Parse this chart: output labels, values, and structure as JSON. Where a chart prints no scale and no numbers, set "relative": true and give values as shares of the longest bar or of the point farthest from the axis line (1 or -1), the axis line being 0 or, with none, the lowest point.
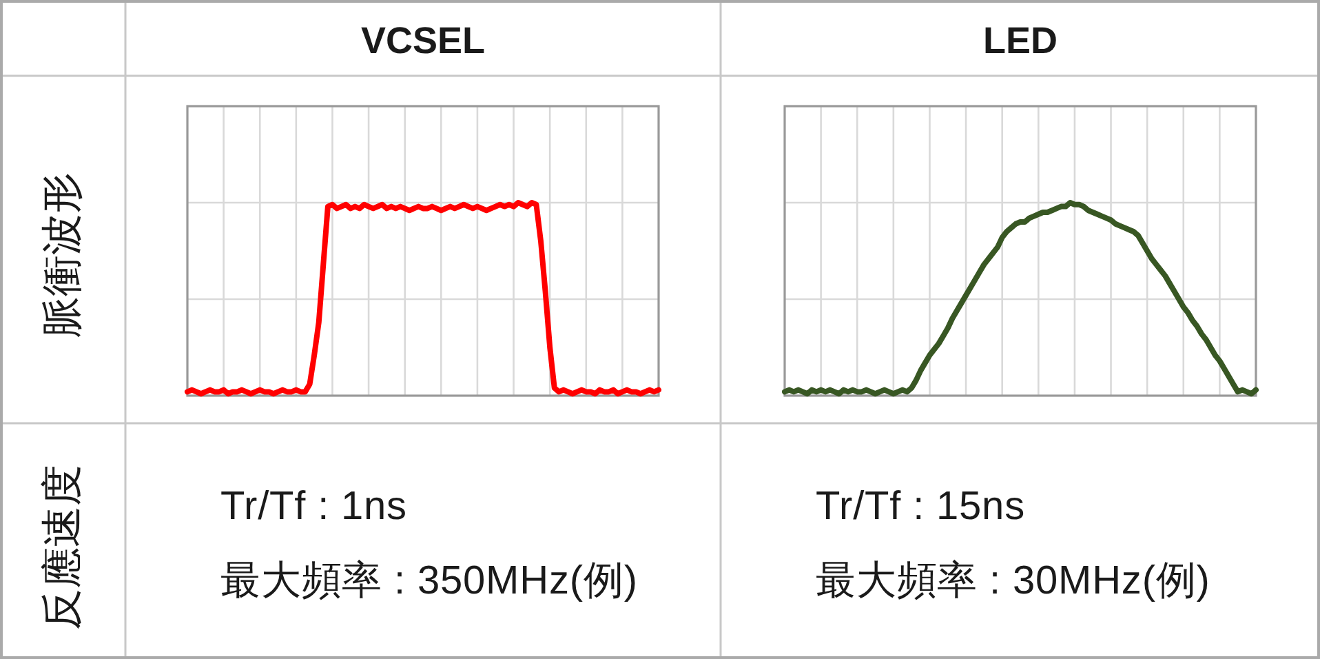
{
  "chart_data": [
    {
      "type": "other",
      "annotations": [
        "脈衝波形",
        "反應速度"
      ]
    },
    {
      "type": "line",
      "title": "VCSEL",
      "relative": true,
      "grid": true,
      "categories": [
        null,
        null,
        null,
        null,
        null,
        null,
        null,
        null,
        null,
        null,
        null,
        null,
        null,
        null,
        null,
        null,
        null,
        null,
        null,
        null,
        null,
        null,
        null,
        null,
        null,
        null,
        null,
        null,
        null,
        null,
        null,
        null,
        null,
        null,
        null,
        null,
        null,
        null,
        null,
        null,
        null,
        null,
        null,
        null,
        null,
        null,
        null,
        null,
        null,
        null,
        null,
        null,
        null,
        null,
        null,
        null,
        null,
        null,
        null,
        null,
        null,
        null,
        null,
        null,
        null,
        null,
        null,
        null,
        null,
        null,
        null,
        null,
        null,
        null,
        null,
        null,
        null,
        null,
        null,
        null,
        null,
        null,
        null,
        null,
        null,
        null,
        null,
        null,
        null,
        null,
        null,
        null,
        null,
        null,
        null,
        null,
        null,
        null,
        null,
        null,
        null,
        null,
        null,
        null,
        null
      ],
      "series": [
        {
          "color": "#ff0000",
          "values": [
            0.02,
            0.03,
            0.02,
            0.01,
            0.02,
            0.03,
            0.02,
            0.02,
            0.03,
            0.01,
            0.02,
            0.02,
            0.03,
            0.02,
            0.01,
            0.02,
            0.03,
            0.02,
            0.02,
            0.01,
            0.02,
            0.03,
            0.02,
            0.02,
            0.03,
            0.02,
            0.02,
            0.06,
            0.21,
            0.38,
            0.68,
            0.98,
            0.99,
            0.97,
            0.98,
            0.99,
            0.97,
            0.98,
            0.97,
            0.99,
            0.98,
            0.97,
            0.98,
            0.99,
            0.97,
            0.98,
            0.97,
            0.98,
            0.97,
            0.96,
            0.97,
            0.98,
            0.97,
            0.97,
            0.98,
            0.97,
            0.96,
            0.97,
            0.98,
            0.97,
            0.98,
            0.99,
            0.98,
            0.97,
            0.98,
            0.97,
            0.96,
            0.97,
            0.98,
            0.99,
            0.98,
            0.99,
            0.98,
            1.0,
            0.99,
            0.98,
            1.0,
            0.99,
            0.8,
            0.54,
            0.25,
            0.04,
            0.02,
            0.03,
            0.02,
            0.01,
            0.02,
            0.03,
            0.02,
            0.02,
            0.01,
            0.03,
            0.02,
            0.02,
            0.03,
            0.01,
            0.02,
            0.03,
            0.02,
            0.02,
            0.01,
            0.02,
            0.03,
            0.02,
            0.03
          ]
        }
      ],
      "annotations": [
        "Tr/Tf : 1ns",
        "最大頻率 : 350MHz(例)"
      ]
    },
    {
      "type": "line",
      "title": "LED",
      "relative": true,
      "grid": true,
      "categories": [
        null,
        null,
        null,
        null,
        null,
        null,
        null,
        null,
        null,
        null,
        null,
        null,
        null,
        null,
        null,
        null,
        null,
        null,
        null,
        null,
        null,
        null,
        null,
        null,
        null,
        null,
        null,
        null,
        null,
        null,
        null,
        null,
        null,
        null,
        null,
        null,
        null,
        null,
        null,
        null,
        null,
        null,
        null,
        null,
        null,
        null,
        null,
        null,
        null,
        null,
        null,
        null,
        null,
        null,
        null,
        null,
        null,
        null,
        null,
        null,
        null,
        null,
        null,
        null,
        null,
        null,
        null,
        null,
        null,
        null,
        null,
        null,
        null,
        null,
        null,
        null,
        null,
        null,
        null,
        null,
        null,
        null,
        null,
        null,
        null,
        null,
        null,
        null,
        null,
        null,
        null,
        null,
        null,
        null,
        null,
        null,
        null,
        null,
        null,
        null,
        null,
        null,
        null,
        null,
        null
      ],
      "series": [
        {
          "color": "#385723",
          "values": [
            0.02,
            0.03,
            0.02,
            0.03,
            0.02,
            0.01,
            0.03,
            0.02,
            0.03,
            0.02,
            0.03,
            0.02,
            0.01,
            0.03,
            0.02,
            0.03,
            0.02,
            0.02,
            0.03,
            0.02,
            0.01,
            0.02,
            0.03,
            0.02,
            0.01,
            0.02,
            0.03,
            0.02,
            0.04,
            0.08,
            0.13,
            0.17,
            0.21,
            0.24,
            0.27,
            0.31,
            0.35,
            0.4,
            0.44,
            0.48,
            0.52,
            0.56,
            0.6,
            0.64,
            0.68,
            0.71,
            0.74,
            0.77,
            0.82,
            0.85,
            0.87,
            0.89,
            0.9,
            0.9,
            0.92,
            0.93,
            0.94,
            0.95,
            0.95,
            0.96,
            0.97,
            0.98,
            0.98,
            1.0,
            0.99,
            0.99,
            0.98,
            0.96,
            0.95,
            0.94,
            0.93,
            0.92,
            0.91,
            0.89,
            0.88,
            0.87,
            0.86,
            0.85,
            0.83,
            0.79,
            0.75,
            0.71,
            0.68,
            0.65,
            0.62,
            0.58,
            0.54,
            0.5,
            0.46,
            0.43,
            0.39,
            0.36,
            0.32,
            0.29,
            0.25,
            0.21,
            0.18,
            0.14,
            0.1,
            0.06,
            0.02,
            0.03,
            0.02,
            0.01,
            0.03
          ]
        }
      ],
      "annotations": [
        "Tr/Tf : 15ns",
        "最大頻率 : 30MHz(例)"
      ]
    }
  ]
}
